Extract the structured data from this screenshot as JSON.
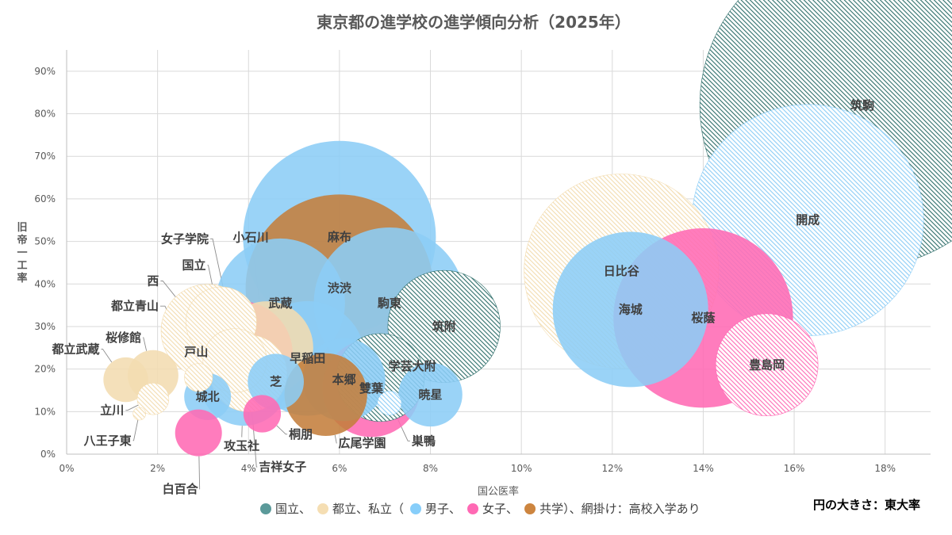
{
  "chart_data": {
    "type": "bubble",
    "title": "東京都の進学校の進学傾向分析（2025年）",
    "xlabel": "国公医率",
    "ylabel": "旧帝一工率",
    "xlim": [
      0,
      0.19
    ],
    "ylim": [
      0,
      0.95
    ],
    "x_ticks": [
      0,
      0.02,
      0.04,
      0.06,
      0.08,
      0.1,
      0.12,
      0.14,
      0.16,
      0.18
    ],
    "x_tick_labels": [
      "0%",
      "2%",
      "4%",
      "6%",
      "8%",
      "10%",
      "12%",
      "14%",
      "16%",
      "18%"
    ],
    "y_ticks": [
      0,
      0.1,
      0.2,
      0.3,
      0.4,
      0.5,
      0.6,
      0.7,
      0.8,
      0.9
    ],
    "y_tick_labels": [
      "0%",
      "10%",
      "20%",
      "30%",
      "40%",
      "50%",
      "60%",
      "70%",
      "80%",
      "90%"
    ],
    "grid": true,
    "size_note": "円の大きさ：東大率",
    "legend": {
      "items": [
        {
          "label": "国立、",
          "color": "#5b9a9a"
        },
        {
          "label": "都立、私立（",
          "color": "#f5deb3"
        },
        {
          "label": "男子、",
          "color": "#87cefa"
        },
        {
          "label": "女子、",
          "color": "#ff69b4"
        },
        {
          "label": "共学）、網掛け：高校入学あり",
          "color": "#cd853f"
        }
      ]
    },
    "colors": {
      "national": "#2e6e6a",
      "public": "#f3dcb0",
      "boys": "#8ccdf6",
      "girls": "#ff6ab4",
      "coed": "#c47e3c"
    },
    "points": [
      {
        "name": "筑駒",
        "x": 0.175,
        "y": 0.82,
        "tokyo": 0.6,
        "cat": "national",
        "hatch": true,
        "label": "inside"
      },
      {
        "name": "開成",
        "x": 0.163,
        "y": 0.55,
        "tokyo": 0.3,
        "cat": "boys",
        "hatch": true,
        "label": "inside"
      },
      {
        "name": "日比谷",
        "x": 0.122,
        "y": 0.43,
        "tokyo": 0.21,
        "cat": "public",
        "hatch": true,
        "label": "inside"
      },
      {
        "name": "海城",
        "x": 0.124,
        "y": 0.34,
        "tokyo": 0.132,
        "cat": "boys",
        "hatch": false,
        "label": "inside"
      },
      {
        "name": "桜蔭",
        "x": 0.14,
        "y": 0.32,
        "tokyo": 0.178,
        "cat": "girls",
        "hatch": false,
        "label": "inside"
      },
      {
        "name": "豊島岡",
        "x": 0.154,
        "y": 0.21,
        "tokyo": 0.055,
        "cat": "girls",
        "hatch": true,
        "label": "inside"
      },
      {
        "name": "麻布",
        "x": 0.06,
        "y": 0.51,
        "tokyo": 0.206,
        "cat": "boys",
        "hatch": false,
        "label": "inside"
      },
      {
        "name": "渋渋",
        "x": 0.06,
        "y": 0.39,
        "tokyo": 0.195,
        "cat": "coed",
        "hatch": false,
        "label": "inside"
      },
      {
        "name": "駒東",
        "x": 0.071,
        "y": 0.355,
        "tokyo": 0.125,
        "cat": "boys",
        "hatch": false,
        "label": "inside"
      },
      {
        "name": "武蔵",
        "x": 0.047,
        "y": 0.355,
        "tokyo": 0.09,
        "cat": "boys",
        "hatch": false,
        "label": "inside"
      },
      {
        "name": "筑附",
        "x": 0.083,
        "y": 0.3,
        "tokyo": 0.067,
        "cat": "national",
        "hatch": true,
        "label": "inside"
      },
      {
        "name": "早稲田",
        "x": 0.053,
        "y": 0.225,
        "tokyo": 0.07,
        "cat": "boys",
        "hatch": false,
        "label": "inside"
      },
      {
        "name": "本郷",
        "x": 0.061,
        "y": 0.175,
        "tokyo": 0.035,
        "cat": "boys",
        "hatch": false,
        "label": "inside"
      },
      {
        "name": "雙葉",
        "x": 0.067,
        "y": 0.155,
        "tokyo": 0.05,
        "cat": "girls",
        "hatch": false,
        "label": "inside"
      },
      {
        "name": "暁星",
        "x": 0.08,
        "y": 0.14,
        "tokyo": 0.02,
        "cat": "boys",
        "hatch": false,
        "label": "inside"
      },
      {
        "name": "芝",
        "x": 0.046,
        "y": 0.17,
        "tokyo": 0.015,
        "cat": "boys",
        "hatch": false,
        "label": "inside"
      },
      {
        "name": "城北",
        "x": 0.031,
        "y": 0.135,
        "tokyo": 0.01,
        "cat": "boys",
        "hatch": false,
        "label": "inside"
      },
      {
        "name": "学芸大附",
        "x": 0.069,
        "y": 0.18,
        "tokyo": 0.04,
        "cat": "national",
        "hatch": true,
        "label": "callout",
        "lx": 0.076,
        "ly": 0.207
      },
      {
        "name": "広尾学園",
        "x": 0.057,
        "y": 0.14,
        "tokyo": 0.035,
        "cat": "coed",
        "hatch": false,
        "label": "callout",
        "lx": 0.065,
        "ly": 0.026
      },
      {
        "name": "巣鴨",
        "x": 0.071,
        "y": 0.12,
        "tokyo": 0.002,
        "cat": "boys",
        "hatch": true,
        "label": "callout",
        "lx": 0.0785,
        "ly": 0.031
      },
      {
        "name": "小石川",
        "x": 0.044,
        "y": 0.25,
        "tokyo": 0.045,
        "cat": "public",
        "hatch": false,
        "label": "callout",
        "lx": 0.0405,
        "ly": 0.509
      },
      {
        "name": "女子学院",
        "x": 0.038,
        "y": 0.235,
        "tokyo": 0.06,
        "cat": "girls",
        "hatch": false,
        "label": "callout",
        "lx": 0.026,
        "ly": 0.506
      },
      {
        "name": "攻玉社",
        "x": 0.039,
        "y": 0.17,
        "tokyo": 0.04,
        "cat": "boys",
        "hatch": false,
        "label": "callout",
        "lx": 0.0385,
        "ly": 0.02
      },
      {
        "name": "桐朋",
        "x": 0.043,
        "y": 0.095,
        "tokyo": 0.006,
        "cat": "girls",
        "hatch": false,
        "label": "callout",
        "lx": 0.0515,
        "ly": 0.047
      },
      {
        "name": "吉祥女子",
        "x": 0.04,
        "y": 0.19,
        "tokyo": 0.03,
        "cat": "public",
        "hatch": true,
        "label": "callout",
        "lx": 0.0475,
        "ly": -0.03
      },
      {
        "name": "戸山",
        "x": 0.037,
        "y": 0.22,
        "tokyo": 0.02,
        "cat": "public",
        "hatch": true,
        "label": "callout",
        "lx": 0.0285,
        "ly": 0.24
      },
      {
        "name": "国立",
        "x": 0.034,
        "y": 0.31,
        "tokyo": 0.025,
        "cat": "public",
        "hatch": true,
        "label": "callout",
        "lx": 0.028,
        "ly": 0.444
      },
      {
        "name": "西",
        "x": 0.031,
        "y": 0.29,
        "tokyo": 0.045,
        "cat": "public",
        "hatch": true,
        "label": "callout",
        "lx": 0.019,
        "ly": 0.407
      },
      {
        "name": "都立青山",
        "x": 0.029,
        "y": 0.18,
        "tokyo": 0.003,
        "cat": "public",
        "hatch": true,
        "label": "callout",
        "lx": 0.015,
        "ly": 0.348
      },
      {
        "name": "桜修館",
        "x": 0.019,
        "y": 0.185,
        "tokyo": 0.012,
        "cat": "public",
        "hatch": false,
        "label": "callout",
        "lx": 0.0125,
        "ly": 0.274
      },
      {
        "name": "都立武蔵",
        "x": 0.013,
        "y": 0.175,
        "tokyo": 0.009,
        "cat": "public",
        "hatch": false,
        "label": "callout",
        "lx": 0.002,
        "ly": 0.247
      },
      {
        "name": "立川",
        "x": 0.019,
        "y": 0.13,
        "tokyo": 0.004,
        "cat": "public",
        "hatch": true,
        "label": "callout",
        "lx": 0.01,
        "ly": 0.103
      },
      {
        "name": "八王子東",
        "x": 0.016,
        "y": 0.095,
        "tokyo": 0.0003,
        "cat": "public",
        "hatch": true,
        "label": "callout",
        "lx": 0.009,
        "ly": 0.032
      },
      {
        "name": "白百合",
        "x": 0.029,
        "y": 0.05,
        "tokyo": 0.01,
        "cat": "girls",
        "hatch": false,
        "label": "callout",
        "lx": 0.025,
        "ly": -0.082
      }
    ]
  }
}
